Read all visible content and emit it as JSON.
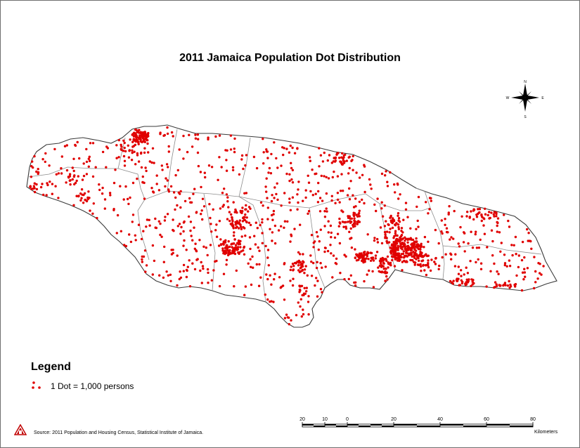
{
  "map": {
    "title": "2011 Jamaica Population Dot Distribution",
    "land_color": "#ffffff",
    "border_color": "#8c8c8c",
    "dot_color": "#e00000",
    "dot_value": 1000,
    "dot_unit": "persons"
  },
  "legend": {
    "title": "Legend",
    "entry_label": "1 Dot = 1,000 persons"
  },
  "compass": {
    "north": "N",
    "south": "S",
    "east": "E",
    "west": "W"
  },
  "scale_bar": {
    "ticks": [
      "20",
      "10",
      "0",
      "20",
      "40",
      "60",
      "80"
    ],
    "unit": "Kilometers"
  },
  "source": "Source: 2011 Population and Housing Census, Statistical Institute of Jamaica.",
  "logo_icon": "statin-logo-icon"
}
